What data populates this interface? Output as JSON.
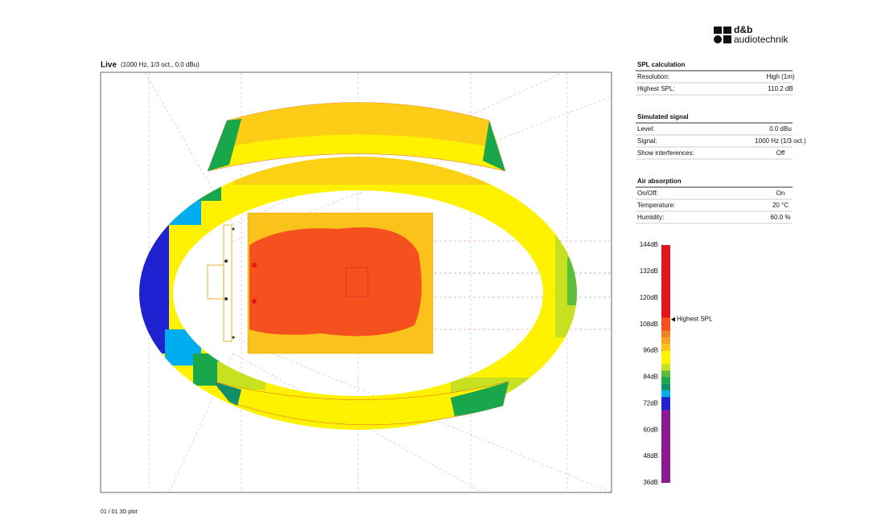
{
  "logo": {
    "brand": "d&b",
    "name": "audiotechnik"
  },
  "plot": {
    "title": "Live",
    "subtitle": "(1000 Hz, 1/3 oct., 0.0 dBu)"
  },
  "sections": [
    {
      "title": "SPL calculation",
      "rows": [
        [
          "Resolution:",
          "High (1m)"
        ],
        [
          "Highest SPL:",
          "110.2 dB"
        ]
      ]
    },
    {
      "title": "Simulated signal",
      "rows": [
        [
          "Level:",
          "0.0 dBu"
        ],
        [
          "Signal:",
          "1000 Hz (1/3 oct.)"
        ],
        [
          "Show interferences:",
          "Off"
        ]
      ]
    },
    {
      "title": "Air absorption",
      "rows": [
        [
          "On/Off:",
          "On"
        ],
        [
          "Temperature:",
          "20 °C"
        ],
        [
          "Humidity:",
          "60.0 %"
        ]
      ]
    }
  ],
  "colorbar": {
    "lim": [
      36,
      144
    ],
    "ticks": [
      {
        "value": 144,
        "label": "144dB"
      },
      {
        "value": 132,
        "label": "132dB"
      },
      {
        "value": 120,
        "label": "120dB"
      },
      {
        "value": 108,
        "label": "108dB"
      },
      {
        "value": 96,
        "label": "96dB"
      },
      {
        "value": 84,
        "label": "84dB"
      },
      {
        "value": 72,
        "label": "72dB"
      },
      {
        "value": 60,
        "label": "60dB"
      },
      {
        "value": 48,
        "label": "48dB"
      },
      {
        "value": 36,
        "label": "36dB"
      }
    ],
    "bands": [
      {
        "from": 111,
        "to": 144,
        "color": "#e3161b"
      },
      {
        "from": 105,
        "to": 111,
        "color": "#f4511e"
      },
      {
        "from": 102,
        "to": 105,
        "color": "#f58220"
      },
      {
        "from": 99,
        "to": 102,
        "color": "#f9a41c"
      },
      {
        "from": 96,
        "to": 99,
        "color": "#fbc21b"
      },
      {
        "from": 90,
        "to": 96,
        "color": "#fff200"
      },
      {
        "from": 87,
        "to": 90,
        "color": "#c7e01f"
      },
      {
        "from": 84,
        "to": 87,
        "color": "#5cbf3b"
      },
      {
        "from": 81,
        "to": 84,
        "color": "#1aa64a"
      },
      {
        "from": 78,
        "to": 81,
        "color": "#0f8f6a"
      },
      {
        "from": 75,
        "to": 78,
        "color": "#00aeef"
      },
      {
        "from": 69,
        "to": 75,
        "color": "#1e22d0"
      },
      {
        "from": 36,
        "to": 69,
        "color": "#8b1a8f"
      }
    ],
    "marker": {
      "value": 110.2,
      "label": "Highest SPL"
    }
  },
  "footer": "01 / 01 3D plot"
}
